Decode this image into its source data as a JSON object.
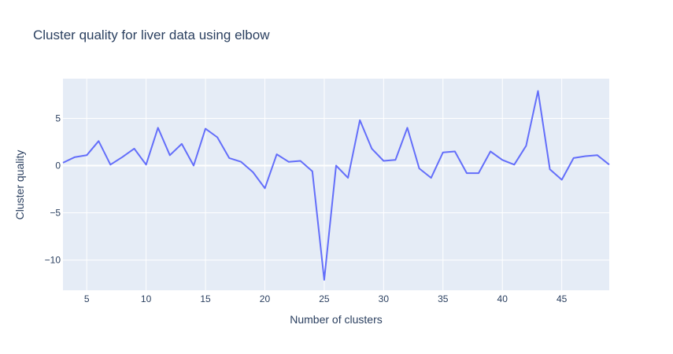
{
  "chart_data": {
    "type": "line",
    "title": "Cluster quality for liver data using elbow",
    "xlabel": "Number of clusters",
    "ylabel": "Cluster quality",
    "xlim": [
      3,
      49
    ],
    "ylim": [
      -13.2,
      9.2
    ],
    "x_ticks": [
      5,
      10,
      15,
      20,
      25,
      30,
      35,
      40,
      45
    ],
    "y_ticks": [
      {
        "value": 5,
        "label": "5"
      },
      {
        "value": 0,
        "label": "0"
      },
      {
        "value": -5,
        "label": "−5"
      },
      {
        "value": -10,
        "label": "−10"
      }
    ],
    "grid": true,
    "legend": false,
    "background_color": "#e5ecf6",
    "grid_color": "#ffffff",
    "series": [
      {
        "color": "#636efa",
        "x": [
          3,
          4,
          5,
          6,
          7,
          8,
          9,
          10,
          11,
          12,
          13,
          14,
          15,
          16,
          17,
          18,
          19,
          20,
          21,
          22,
          23,
          24,
          25,
          26,
          27,
          28,
          29,
          30,
          31,
          32,
          33,
          34,
          35,
          36,
          37,
          38,
          39,
          40,
          41,
          42,
          43,
          44,
          45,
          46,
          47,
          48,
          49
        ],
        "y": [
          0.3,
          0.9,
          1.1,
          2.6,
          0.1,
          0.9,
          1.8,
          0.1,
          4.0,
          1.1,
          2.3,
          0.0,
          3.9,
          3.0,
          0.8,
          0.4,
          -0.7,
          -2.4,
          1.2,
          0.4,
          0.5,
          -0.6,
          -12.1,
          0.0,
          -1.3,
          4.8,
          1.8,
          0.5,
          0.6,
          4.0,
          -0.3,
          -1.3,
          1.4,
          1.5,
          -0.8,
          -0.8,
          1.5,
          0.6,
          0.1,
          2.1,
          7.9,
          -0.4,
          -1.5,
          0.8,
          1.0,
          1.1,
          0.1
        ]
      }
    ]
  }
}
